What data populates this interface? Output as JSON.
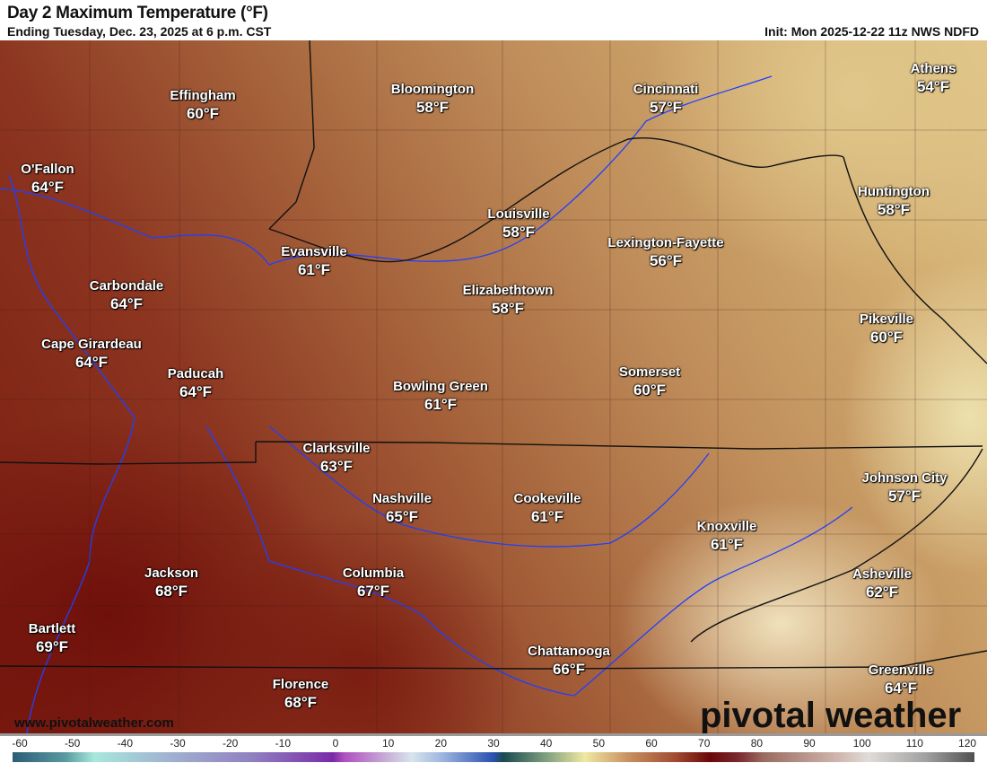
{
  "header": {
    "title": "Day 2 Maximum Temperature (°F)",
    "subtitle": "Ending Tuesday, Dec. 23, 2025 at 6 p.m. CST",
    "init": "Init: Mon 2025-12-22 11z NWS NDFD"
  },
  "cities": [
    {
      "name": "Effingham",
      "temp": "60°F"
    },
    {
      "name": "Bloomington",
      "temp": "58°F"
    },
    {
      "name": "Cincinnati",
      "temp": "57°F"
    },
    {
      "name": "Athens",
      "temp": "54°F"
    },
    {
      "name": "O'Fallon",
      "temp": "64°F"
    },
    {
      "name": "Huntington",
      "temp": "58°F"
    },
    {
      "name": "Louisville",
      "temp": "58°F"
    },
    {
      "name": "Lexington-Fayette",
      "temp": "56°F"
    },
    {
      "name": "Evansville",
      "temp": "61°F"
    },
    {
      "name": "Carbondale",
      "temp": "64°F"
    },
    {
      "name": "Elizabethtown",
      "temp": "58°F"
    },
    {
      "name": "Pikeville",
      "temp": "60°F"
    },
    {
      "name": "Cape Girardeau",
      "temp": "64°F"
    },
    {
      "name": "Paducah",
      "temp": "64°F"
    },
    {
      "name": "Somerset",
      "temp": "60°F"
    },
    {
      "name": "Bowling Green",
      "temp": "61°F"
    },
    {
      "name": "Clarksville",
      "temp": "63°F"
    },
    {
      "name": "Johnson City",
      "temp": "57°F"
    },
    {
      "name": "Nashville",
      "temp": "65°F"
    },
    {
      "name": "Cookeville",
      "temp": "61°F"
    },
    {
      "name": "Knoxville",
      "temp": "61°F"
    },
    {
      "name": "Jackson",
      "temp": "68°F"
    },
    {
      "name": "Columbia",
      "temp": "67°F"
    },
    {
      "name": "Asheville",
      "temp": "62°F"
    },
    {
      "name": "Bartlett",
      "temp": "69°F"
    },
    {
      "name": "Chattanooga",
      "temp": "66°F"
    },
    {
      "name": "Greenville",
      "temp": "64°F"
    },
    {
      "name": "Florence",
      "temp": "68°F"
    }
  ],
  "footer": {
    "website": "www.pivotalweather.com",
    "logo": "pivotal weather"
  },
  "colorbar": {
    "unit": "°F",
    "ticks": [
      "-60",
      "-50",
      "-40",
      "-30",
      "-20",
      "-10",
      "0",
      "10",
      "20",
      "30",
      "40",
      "50",
      "60",
      "70",
      "80",
      "90",
      "100",
      "110",
      "120"
    ],
    "range": [
      -60,
      120
    ]
  },
  "colors": {
    "river": "#2040ff",
    "border": "#111111",
    "cold": "#2b5c78",
    "warm": "#6a0808"
  }
}
